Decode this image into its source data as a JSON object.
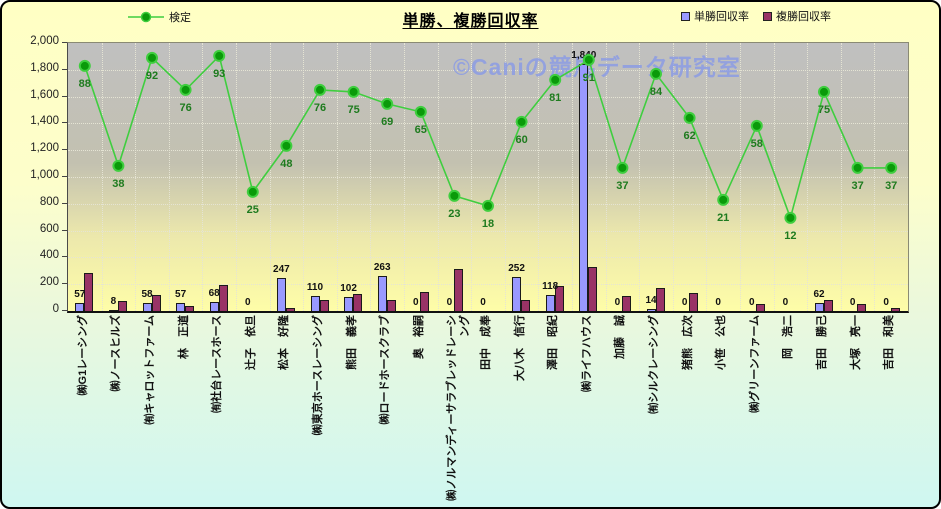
{
  "title": "単勝、複勝回収率",
  "watermark": "©Caniの競馬データ研究室",
  "legend": {
    "line_label": "検定",
    "bar1_label": "単勝回収率",
    "bar2_label": "複勝回収率"
  },
  "colors": {
    "bar1": "#9999FF",
    "bar2": "#993366",
    "line": "#3FCE3F",
    "marker_fill": "#0A9A0A",
    "line_value_label": "#1E7B1E",
    "watermark": "#8A9BE6"
  },
  "y_axis": {
    "tick_labels": [
      "2,000",
      "1,800",
      "1,600",
      "1,400",
      "1,200",
      "1,000",
      "800",
      "600",
      "400",
      "200",
      "0"
    ]
  },
  "chart_data": {
    "type": "combo",
    "categories": [
      "㈱G1レーシング",
      "㈱ノースヒルズ",
      "㈲キャロットファーム",
      "林　正道",
      "㈲社台レースホース",
      "辻子　依旦",
      "松本　好隆",
      "㈱東京ホースレーシング",
      "熊田　義孝",
      "㈱ロードホースクラブ",
      "奥　裕嗣",
      "㈱ノルマンディーサラブレッドレーシング",
      "田中　成奉",
      "大八木　信行",
      "澤田　昭紀",
      "㈱ライフハウス",
      "加藤　誠",
      "㈲シルクレーシング",
      "猪熊　広次",
      "小笹　公也",
      "㈱グリーンファーム",
      "岡　浩二",
      "吉田　勝己",
      "大塚　亮一",
      "吉田　和美"
    ],
    "series": [
      {
        "name": "単勝回収率",
        "type": "bar",
        "color": "#9999FF",
        "values": [
          57,
          8,
          58,
          57,
          68,
          0,
          247,
          110,
          102,
          263,
          0,
          0,
          0,
          252,
          118,
          1840,
          0,
          14,
          0,
          0,
          0,
          0,
          62,
          0,
          0
        ],
        "value_labels": [
          "57",
          "8",
          "58",
          "57",
          "68",
          "0",
          "247",
          "110",
          "102",
          "263",
          "0",
          "0",
          "0",
          "252",
          "118",
          "1,840",
          "0",
          "14",
          "0",
          "0",
          "0",
          "0",
          "62",
          "0",
          "0"
        ]
      },
      {
        "name": "複勝回収率",
        "type": "bar",
        "color": "#993366",
        "values": [
          285,
          75,
          120,
          40,
          195,
          0,
          20,
          80,
          125,
          85,
          145,
          310,
          0,
          80,
          185,
          330,
          110,
          170,
          135,
          0,
          50,
          0,
          85,
          50,
          20
        ]
      },
      {
        "name": "検定",
        "type": "line",
        "color": "#3FCE3F",
        "values": [
          88,
          38,
          92,
          76,
          93,
          25,
          48,
          76,
          75,
          69,
          65,
          23,
          18,
          60,
          81,
          91,
          37,
          84,
          62,
          21,
          58,
          12,
          75,
          37,
          37
        ]
      }
    ],
    "y_left": {
      "min": 0,
      "max": 2000,
      "step": 200
    },
    "grid": true,
    "legend_position": "top"
  }
}
